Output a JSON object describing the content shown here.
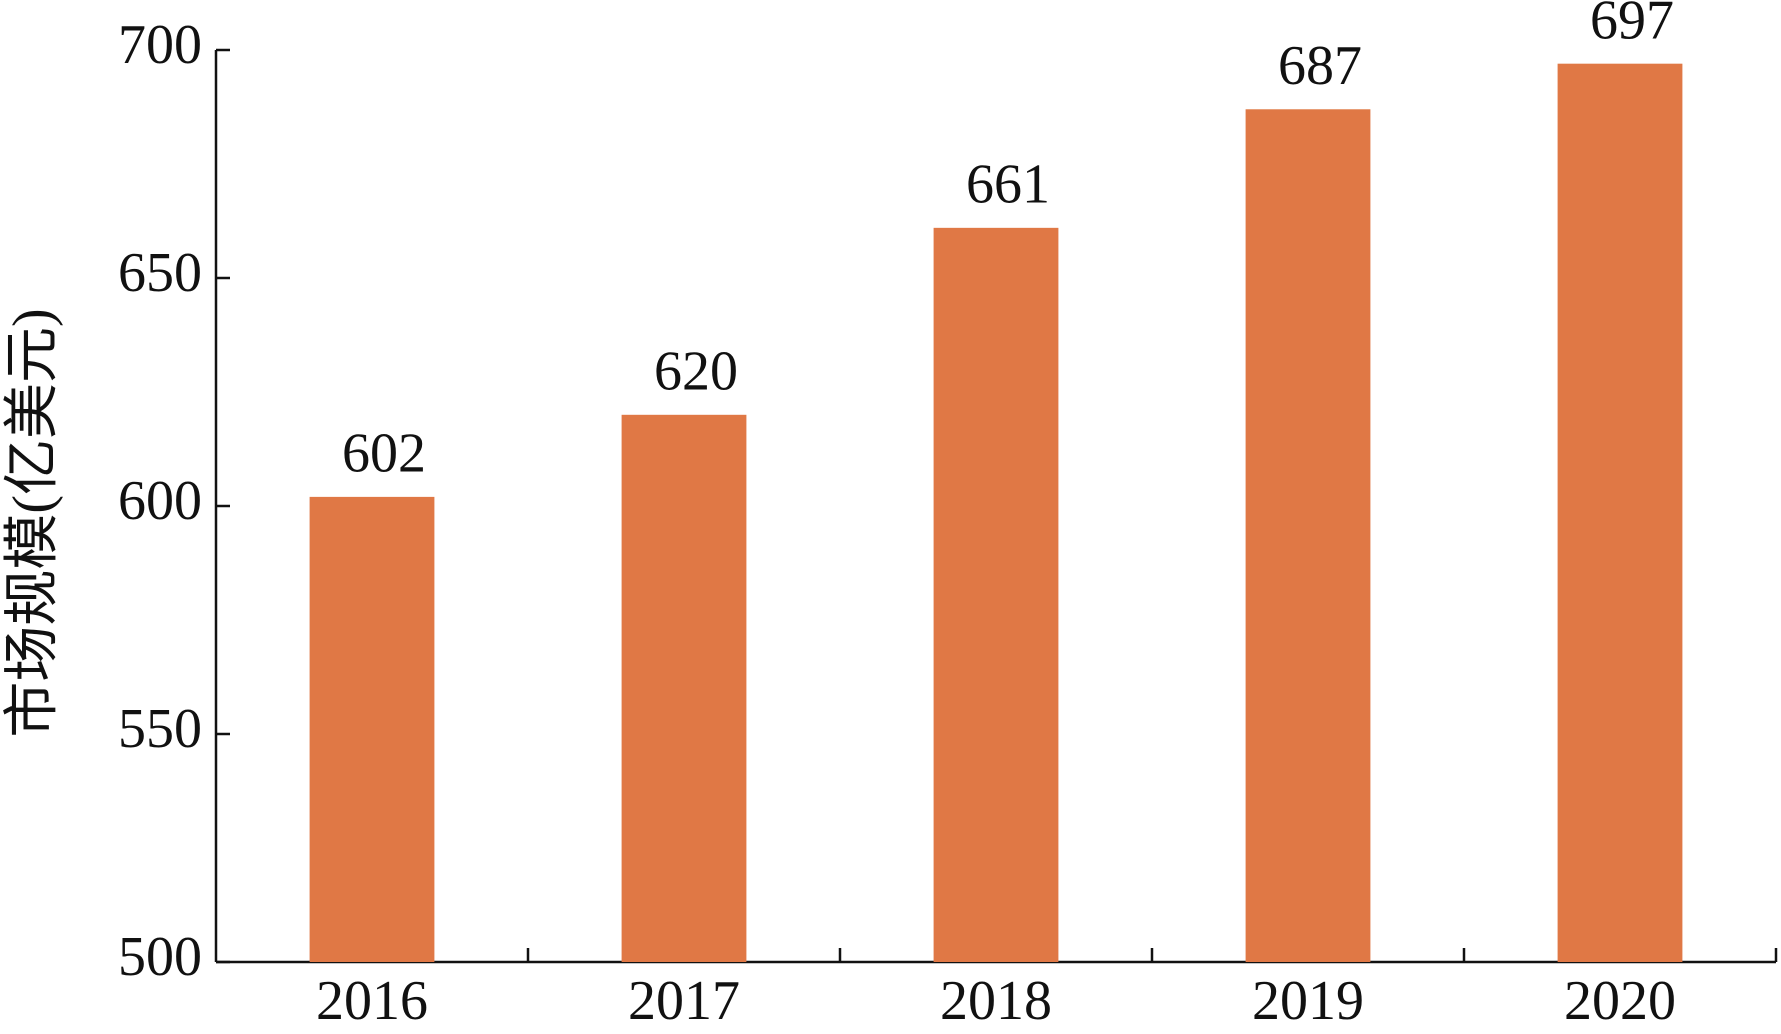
{
  "chart_data": {
    "type": "bar",
    "y_label": "市场规模(亿美元)",
    "categories": [
      "2016",
      "2017",
      "2018",
      "2019",
      "2020"
    ],
    "values": [
      602,
      620,
      661,
      687,
      697
    ],
    "color": "#e07845",
    "ylim": [
      500,
      700
    ],
    "yticks": [
      500,
      550,
      600,
      650,
      700
    ],
    "grid": false
  }
}
